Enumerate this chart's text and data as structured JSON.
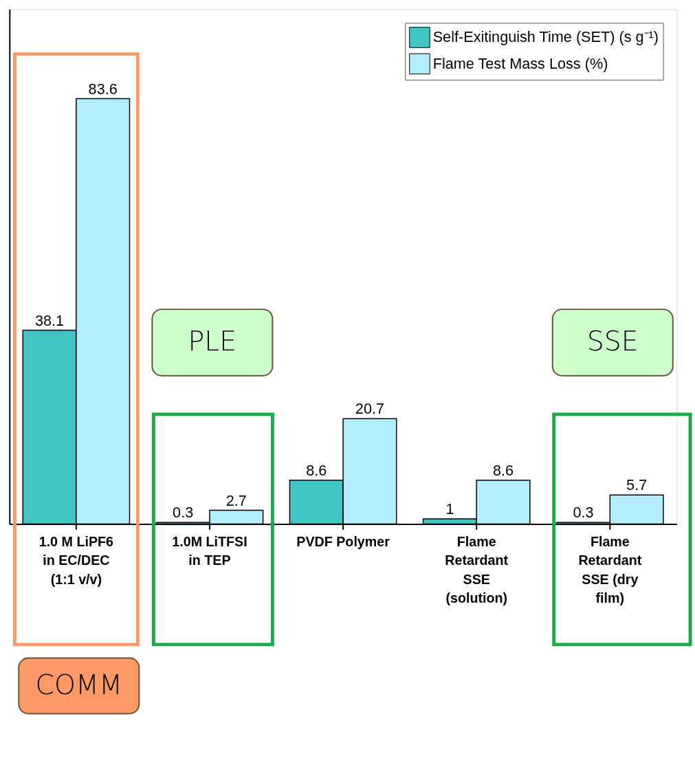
{
  "chart_data": {
    "type": "bar",
    "categories": [
      "1.0 M LiPF6 in EC/DEC (1:1 v/v)",
      "1.0M LiTFSI in TEP",
      "PVDF Polymer",
      "Flame Retardant SSE (solution)",
      "Flame Retardant SSE (dry film)"
    ],
    "series": [
      {
        "name": "Self-Exitinguish Time (SET) (s g⁻¹)",
        "color": "#40c4c4",
        "values": [
          38.1,
          0.3,
          8.6,
          1,
          0.3
        ]
      },
      {
        "name": "Flame Test Mass Loss (%)",
        "color": "#b3ecfb",
        "values": [
          83.6,
          2.7,
          20.7,
          8.6,
          5.7
        ]
      }
    ],
    "data_labels": true,
    "legend": "top right",
    "grid": false,
    "annotations": [
      "PLE",
      "SSE",
      "COMM"
    ]
  }
}
